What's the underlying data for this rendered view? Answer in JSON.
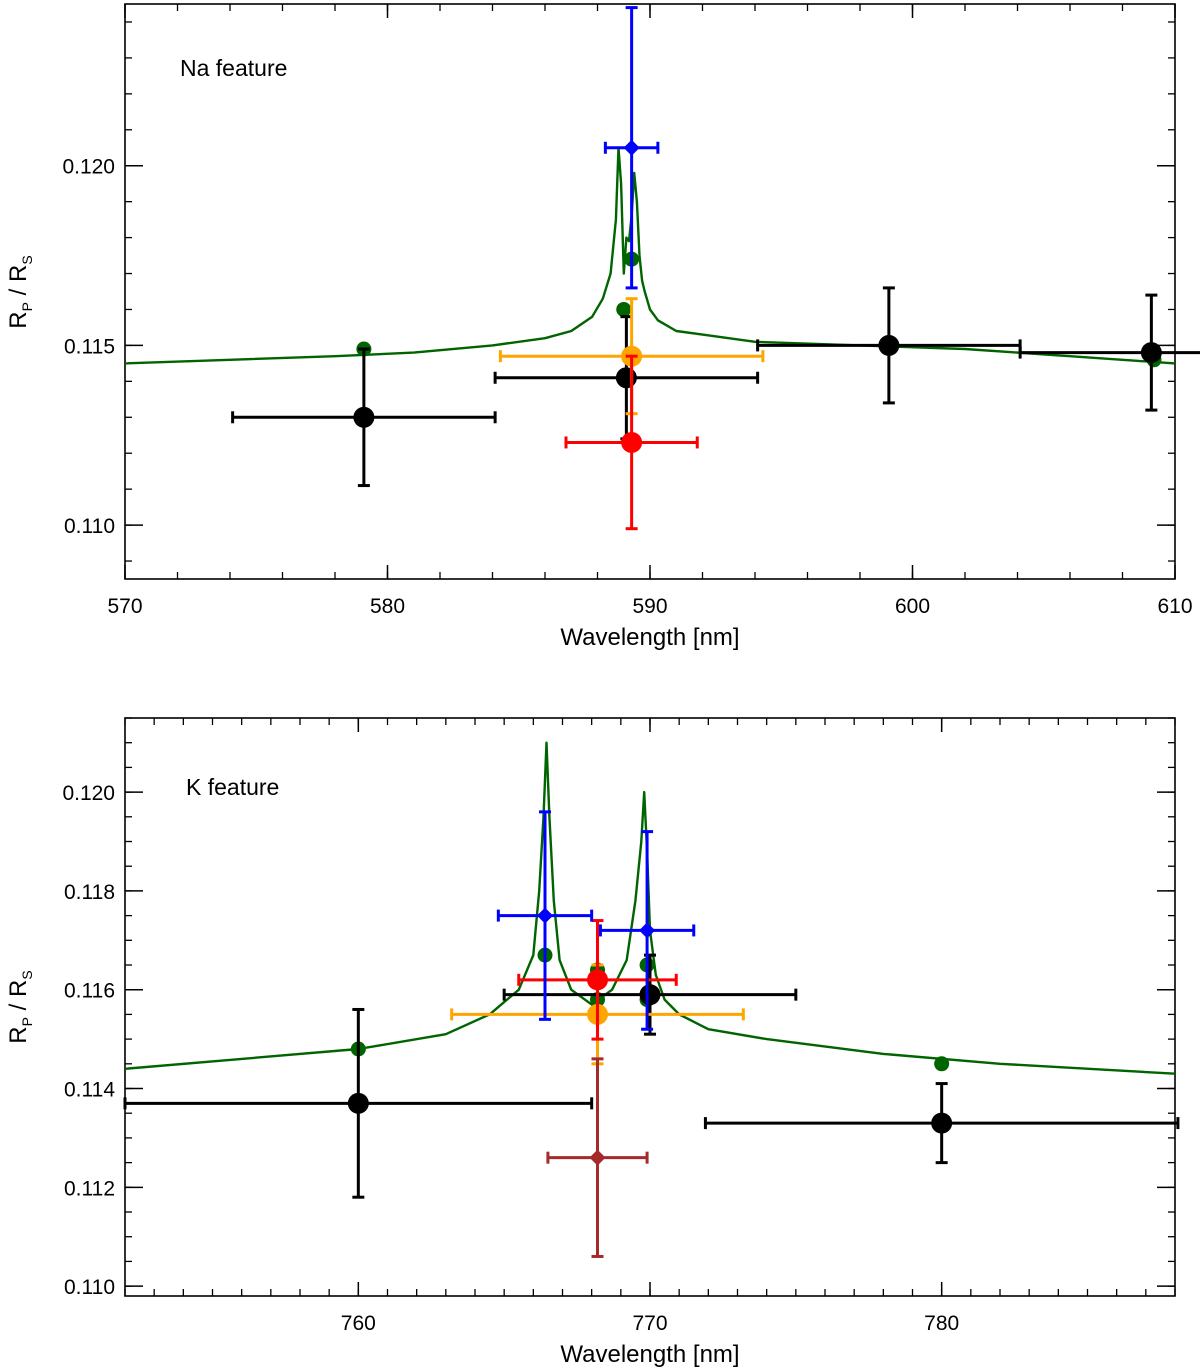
{
  "chart_data": [
    {
      "type": "scatter",
      "annotation": "Na feature",
      "xlabel": "Wavelength [nm]",
      "ylabel": "R_P / R_S",
      "ylabel_parts": {
        "r1": "R",
        "s1": "P",
        "slash": " / ",
        "r2": "R",
        "s2": "S"
      },
      "xlim": [
        570,
        610
      ],
      "ylim": [
        0.1085,
        0.1245
      ],
      "xticks": [
        570,
        580,
        590,
        600,
        610
      ],
      "xtick_labels": [
        "570",
        "580",
        "590",
        "600",
        "610"
      ],
      "xminor": 2,
      "yticks": [
        0.11,
        0.115,
        0.12
      ],
      "ytick_labels": [
        "0.110",
        "0.115",
        "0.120"
      ],
      "yminor": 0.001,
      "grid": false,
      "model_curve": {
        "color": "#006400",
        "x": [
          570,
          574,
          578,
          581,
          584,
          586,
          587,
          587.8,
          588.2,
          588.5,
          588.7,
          588.8,
          588.9,
          589.0,
          589.1,
          589.2,
          589.3,
          589.4,
          589.5,
          589.6,
          589.7,
          589.8,
          590.0,
          590.3,
          591,
          592,
          594,
          598,
          602,
          606,
          610
        ],
        "y": [
          0.1145,
          0.1146,
          0.1147,
          0.1148,
          0.115,
          0.1152,
          0.1154,
          0.1158,
          0.1163,
          0.117,
          0.1185,
          0.1205,
          0.1195,
          0.117,
          0.118,
          0.1179,
          0.1186,
          0.1198,
          0.119,
          0.1175,
          0.1168,
          0.1165,
          0.116,
          0.1157,
          0.1154,
          0.1153,
          0.1151,
          0.115,
          0.1149,
          0.1147,
          0.1145
        ]
      },
      "model_points": {
        "color": "#006400",
        "points": [
          {
            "x": 579.1,
            "y": 0.1149
          },
          {
            "x": 589.0,
            "y": 0.116
          },
          {
            "x": 589.3,
            "y": 0.1174
          },
          {
            "x": 609.2,
            "y": 0.1146
          }
        ]
      },
      "series": [
        {
          "color": "#000000",
          "marker": "circle",
          "points": [
            {
              "x": 579.1,
              "y": 0.113,
              "xerr": 5.0,
              "yerr": 0.0019
            },
            {
              "x": 589.1,
              "y": 0.1141,
              "xerr": 5.0,
              "yerr": 0.0017
            },
            {
              "x": 599.1,
              "y": 0.115,
              "xerr": 5.0,
              "yerr": 0.0016
            },
            {
              "x": 609.1,
              "y": 0.1148,
              "xerr": 5.0,
              "yerr": 0.0016
            }
          ]
        },
        {
          "color": "#ffa500",
          "marker": "circle",
          "points": [
            {
              "x": 589.3,
              "y": 0.1147,
              "xerr": 5.0,
              "yerr": 0.0016
            }
          ]
        },
        {
          "color": "#ff0000",
          "marker": "circle",
          "points": [
            {
              "x": 589.3,
              "y": 0.1123,
              "xerr": 2.5,
              "yerr": 0.0024
            }
          ]
        },
        {
          "color": "#0000ff",
          "marker": "diamond",
          "points": [
            {
              "x": 589.3,
              "y": 0.1205,
              "xerr": 1.0,
              "yerr": 0.0039
            }
          ]
        }
      ]
    },
    {
      "type": "scatter",
      "annotation": "K feature",
      "xlabel": "Wavelength [nm]",
      "ylabel": "R_P / R_S",
      "ylabel_parts": {
        "r1": "R",
        "s1": "P",
        "slash": " / ",
        "r2": "R",
        "s2": "S"
      },
      "xlim": [
        752,
        788
      ],
      "ylim": [
        0.1098,
        0.1215
      ],
      "xticks": [
        760,
        770,
        780
      ],
      "xtick_labels": [
        "760",
        "770",
        "780"
      ],
      "xminor": 1,
      "yticks": [
        0.11,
        0.112,
        0.114,
        0.116,
        0.118,
        0.12
      ],
      "ytick_labels": [
        "0.110",
        "0.112",
        "0.114",
        "0.116",
        "0.118",
        "0.120"
      ],
      "yminor": 0.0005,
      "grid": false,
      "model_curve": {
        "color": "#006400",
        "x": [
          752,
          756,
          760,
          763,
          764.5,
          765.5,
          766.0,
          766.2,
          766.35,
          766.45,
          766.55,
          766.7,
          766.9,
          767.3,
          768.0,
          768.7,
          769.2,
          769.5,
          769.7,
          769.8,
          769.9,
          770.0,
          770.2,
          770.5,
          771,
          772,
          774,
          778,
          782,
          788
        ],
        "y": [
          0.1144,
          0.1146,
          0.1148,
          0.1151,
          0.1155,
          0.116,
          0.1167,
          0.118,
          0.1195,
          0.121,
          0.1195,
          0.1178,
          0.1166,
          0.116,
          0.1157,
          0.116,
          0.1166,
          0.1178,
          0.119,
          0.12,
          0.1188,
          0.1172,
          0.1163,
          0.1158,
          0.1155,
          0.1152,
          0.115,
          0.1147,
          0.1145,
          0.1143
        ]
      },
      "model_points": {
        "color": "#006400",
        "points": [
          {
            "x": 760.0,
            "y": 0.1148
          },
          {
            "x": 766.4,
            "y": 0.1167
          },
          {
            "x": 768.2,
            "y": 0.1164
          },
          {
            "x": 768.2,
            "y": 0.1158
          },
          {
            "x": 769.9,
            "y": 0.1165
          },
          {
            "x": 769.9,
            "y": 0.1158
          },
          {
            "x": 780.0,
            "y": 0.1145
          }
        ]
      },
      "series": [
        {
          "color": "#000000",
          "marker": "circle",
          "points": [
            {
              "x": 760.0,
              "y": 0.1137,
              "xerr": 8.0,
              "yerr": 0.0019
            },
            {
              "x": 770.0,
              "y": 0.1159,
              "xerr": 5.0,
              "yerr": 0.0008
            },
            {
              "x": 780.0,
              "y": 0.1133,
              "xerr": 8.1,
              "yerr": 0.0008
            }
          ]
        },
        {
          "color": "#ffa500",
          "marker": "circle",
          "points": [
            {
              "x": 768.2,
              "y": 0.1155,
              "xerr": 5.0,
              "yerr": 0.001
            }
          ]
        },
        {
          "color": "#ff0000",
          "marker": "circle",
          "points": [
            {
              "x": 768.2,
              "y": 0.1162,
              "xerr": 2.7,
              "yerr": 0.0012
            }
          ]
        },
        {
          "color": "#0000ff",
          "marker": "diamond",
          "points": [
            {
              "x": 766.4,
              "y": 0.1175,
              "xerr": 1.6,
              "yerr": 0.0021
            },
            {
              "x": 769.9,
              "y": 0.1172,
              "xerr": 1.6,
              "yerr": 0.002
            }
          ]
        },
        {
          "color": "#a52a2a",
          "marker": "diamond",
          "points": [
            {
              "x": 768.2,
              "y": 0.1126,
              "xerr": 1.7,
              "yerr": 0.002
            }
          ]
        }
      ]
    }
  ]
}
